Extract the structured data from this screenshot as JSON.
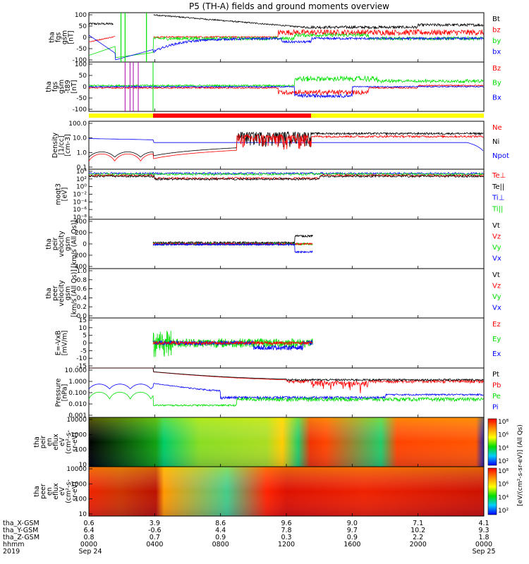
{
  "title": "P5 (TH-A) fields and ground moments overview",
  "colors": {
    "black": "#000000",
    "red": "#ff0000",
    "green": "#00e000",
    "blue": "#0000ff",
    "yellow": "#ffff00"
  },
  "chart_data": {
    "type": "line",
    "x_time_ticks": [
      "0000",
      "0400",
      "0800",
      "1200",
      "1600",
      "2000",
      "0000"
    ],
    "x_date_labels": [
      "Sep 24",
      "Sep 25"
    ],
    "year": "2019",
    "ephemeris": {
      "row_labels": [
        "tha_X-GSM",
        "tha_Y-GSM",
        "tha_Z-GSM",
        "hhmm",
        "2019"
      ],
      "X": [
        "0.6",
        "3.9",
        "8.6",
        "9.6",
        "9.0",
        "7.1",
        "4.1"
      ],
      "Y": [
        "6.4",
        "-0.6",
        "4.4",
        "7.8",
        "9.7",
        "10.2",
        "9.3"
      ],
      "Z": [
        "0.8",
        "0.7",
        "0.9",
        "0.3",
        "0.9",
        "2.2",
        "1.8"
      ]
    },
    "mode_bar": {
      "colors": [
        "yellow",
        "red",
        "yellow"
      ],
      "breaks_hours": [
        0,
        3.9,
        13.5,
        24
      ]
    },
    "panels": [
      {
        "ylabel": [
          "tha",
          "fgs",
          "gsm",
          "[nT]"
        ],
        "yticks": [
          "100",
          "50",
          "0",
          "-50",
          "-100"
        ],
        "legend": [
          [
            "Bt",
            "black"
          ],
          [
            "bz",
            "red"
          ],
          [
            "by",
            "green"
          ],
          [
            "bx",
            "blue"
          ]
        ]
      },
      {
        "ylabel": [
          "tha",
          "fgs",
          "gsm",
          "-t89",
          "[nT]"
        ],
        "yticks": [
          "100",
          "50",
          "0",
          "-50",
          "-100"
        ],
        "legend": [
          [
            "Bz",
            "red"
          ],
          [
            "By",
            "green"
          ],
          [
            "Bx",
            "blue"
          ]
        ]
      },
      {
        "ylabel": [
          "Density",
          "[1/cc]",
          "[cm-3]"
        ],
        "yticks": [
          "100.0",
          "10.0",
          "1.0",
          "0.1"
        ],
        "legend": [
          [
            "Ne",
            "red"
          ],
          [
            "Ni",
            "black"
          ],
          [
            "Npot",
            "blue"
          ]
        ]
      },
      {
        "ylabel": [
          "moqt3",
          "[eV]"
        ],
        "yticks": [
          "10⁴",
          "10²",
          "10⁰",
          "10⁻²",
          "10⁻⁴",
          "10⁻⁶",
          "10⁻⁸"
        ],
        "legend": [
          [
            "Te⊥",
            "red"
          ],
          [
            "Te||",
            "black"
          ],
          [
            "Ti⊥",
            "blue"
          ],
          [
            "Ti||",
            "green"
          ]
        ]
      },
      {
        "ylabel": [
          "tha",
          "peir",
          "velocity",
          "gsm",
          "[km/s (All Qs)]"
        ],
        "yticks": [
          "400",
          "200",
          "0",
          "-200",
          "-400"
        ],
        "legend": [
          [
            "Vt",
            "black"
          ],
          [
            "Vz",
            "red"
          ],
          [
            "Vy",
            "green"
          ],
          [
            "Vx",
            "blue"
          ]
        ]
      },
      {
        "ylabel": [
          "tha",
          "peer",
          "velocity",
          "gsm",
          "[km/s (All Qs)]"
        ],
        "yticks": [
          "1.0",
          "0.8",
          "0.6",
          "0.4",
          "0.2",
          "0.0"
        ],
        "legend": [
          [
            "Vt",
            "black"
          ],
          [
            "Vz",
            "red"
          ],
          [
            "Vy",
            "green"
          ],
          [
            "Vx",
            "blue"
          ]
        ]
      },
      {
        "ylabel": [
          "E=-VxB",
          "[mV/m]"
        ],
        "yticks": [
          "15",
          "10",
          "5",
          "0",
          "-5",
          "-10",
          "-15"
        ],
        "legend": [
          [
            "Ez",
            "red"
          ],
          [
            "Ey",
            "green"
          ],
          [
            "Ex",
            "blue"
          ]
        ]
      },
      {
        "ylabel": [
          "Pressure",
          "[nPa]"
        ],
        "yticks": [
          "10.000",
          "1.000",
          "0.100",
          "0.010",
          "0.001"
        ],
        "legend": [
          [
            "Pt",
            "black"
          ],
          [
            "Pb",
            "red"
          ],
          [
            "Pe",
            "green"
          ],
          [
            "Pi",
            "blue"
          ]
        ]
      },
      {
        "ylabel": [
          "tha",
          "peir",
          "en",
          "eflux",
          "eV",
          "(cm²-s-",
          "sr-eV)"
        ],
        "yticks": [
          "10000",
          "1000",
          "100",
          "10"
        ]
      },
      {
        "ylabel": [
          "tha",
          "peer",
          "en",
          "eflux",
          "eV",
          "(cm²-s-",
          "sr-eV)"
        ],
        "yticks": [
          "10000",
          "1000",
          "100",
          "10"
        ]
      }
    ],
    "colorbars": [
      {
        "ticks": [
          "10⁸",
          "10⁶",
          "10⁴",
          "10²"
        ]
      },
      {
        "ticks": [
          "10⁸",
          "10⁶",
          "10⁴",
          "10²"
        ]
      }
    ],
    "colorbar_label": "[eV/(cm²-s-sr-eV)] (All Qs)"
  }
}
